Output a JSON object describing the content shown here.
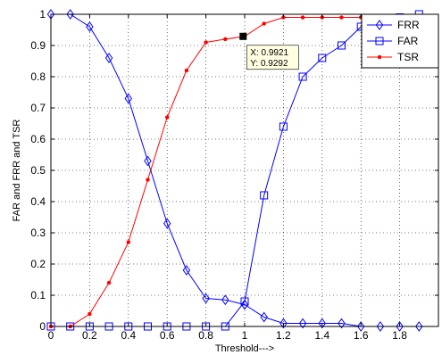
{
  "chart_data": {
    "type": "line",
    "title": "",
    "xlabel": "Threshold--->",
    "ylabel": "FAR and FRR and TSR",
    "xlim": [
      0,
      2
    ],
    "ylim": [
      0,
      1
    ],
    "xticks": [
      0,
      0.2,
      0.4,
      0.6,
      0.8,
      1,
      1.2,
      1.4,
      1.6,
      1.8
    ],
    "xtick_labels": [
      "0",
      "0.2",
      "0.4",
      "0.6",
      "0.8",
      "1",
      "1.2",
      "1.4",
      "1.6",
      "1.8"
    ],
    "yticks": [
      0,
      0.1,
      0.2,
      0.3,
      0.4,
      0.5,
      0.6,
      0.7,
      0.8,
      0.9,
      1
    ],
    "ytick_labels": [
      "0",
      "0.1",
      "0.2",
      "0.3",
      "0.4",
      "0.5",
      "0.6",
      "0.7",
      "0.8",
      "0.9",
      "1"
    ],
    "grid": true,
    "legend_position": "top-right",
    "x": [
      0,
      0.1,
      0.2,
      0.3,
      0.4,
      0.5,
      0.6,
      0.7,
      0.8,
      0.9,
      1.0,
      1.1,
      1.2,
      1.3,
      1.4,
      1.5,
      1.6,
      1.7,
      1.8,
      1.9
    ],
    "series": [
      {
        "name": "FRR",
        "color": "#0000ff",
        "marker": "diamond",
        "values": [
          1.0,
          1.0,
          0.96,
          0.86,
          0.73,
          0.53,
          0.33,
          0.18,
          0.09,
          0.085,
          0.07,
          0.03,
          0.01,
          0.01,
          0.01,
          0.01,
          0.0,
          0.0,
          0.0,
          0.0
        ]
      },
      {
        "name": "FAR",
        "color": "#0000ff",
        "marker": "square",
        "values": [
          0.0,
          0.0,
          0.0,
          0.0,
          0.0,
          0.0,
          0.0,
          0.0,
          0.0,
          0.0,
          0.08,
          0.42,
          0.64,
          0.8,
          0.86,
          0.9,
          0.96,
          0.98,
          0.99,
          1.0
        ]
      },
      {
        "name": "TSR",
        "color": "#ff0000",
        "marker": "dot",
        "values": [
          0.0,
          0.0,
          0.04,
          0.14,
          0.27,
          0.47,
          0.67,
          0.82,
          0.91,
          0.9202,
          0.9292,
          0.97,
          0.99,
          0.99,
          0.99,
          0.99,
          0.99,
          0.99,
          0.99,
          0.99
        ]
      }
    ],
    "annotation": {
      "x": 0.9921,
      "y": 0.9292,
      "text_x": "X: 0.9921",
      "text_y": "Y: 0.9292"
    }
  }
}
